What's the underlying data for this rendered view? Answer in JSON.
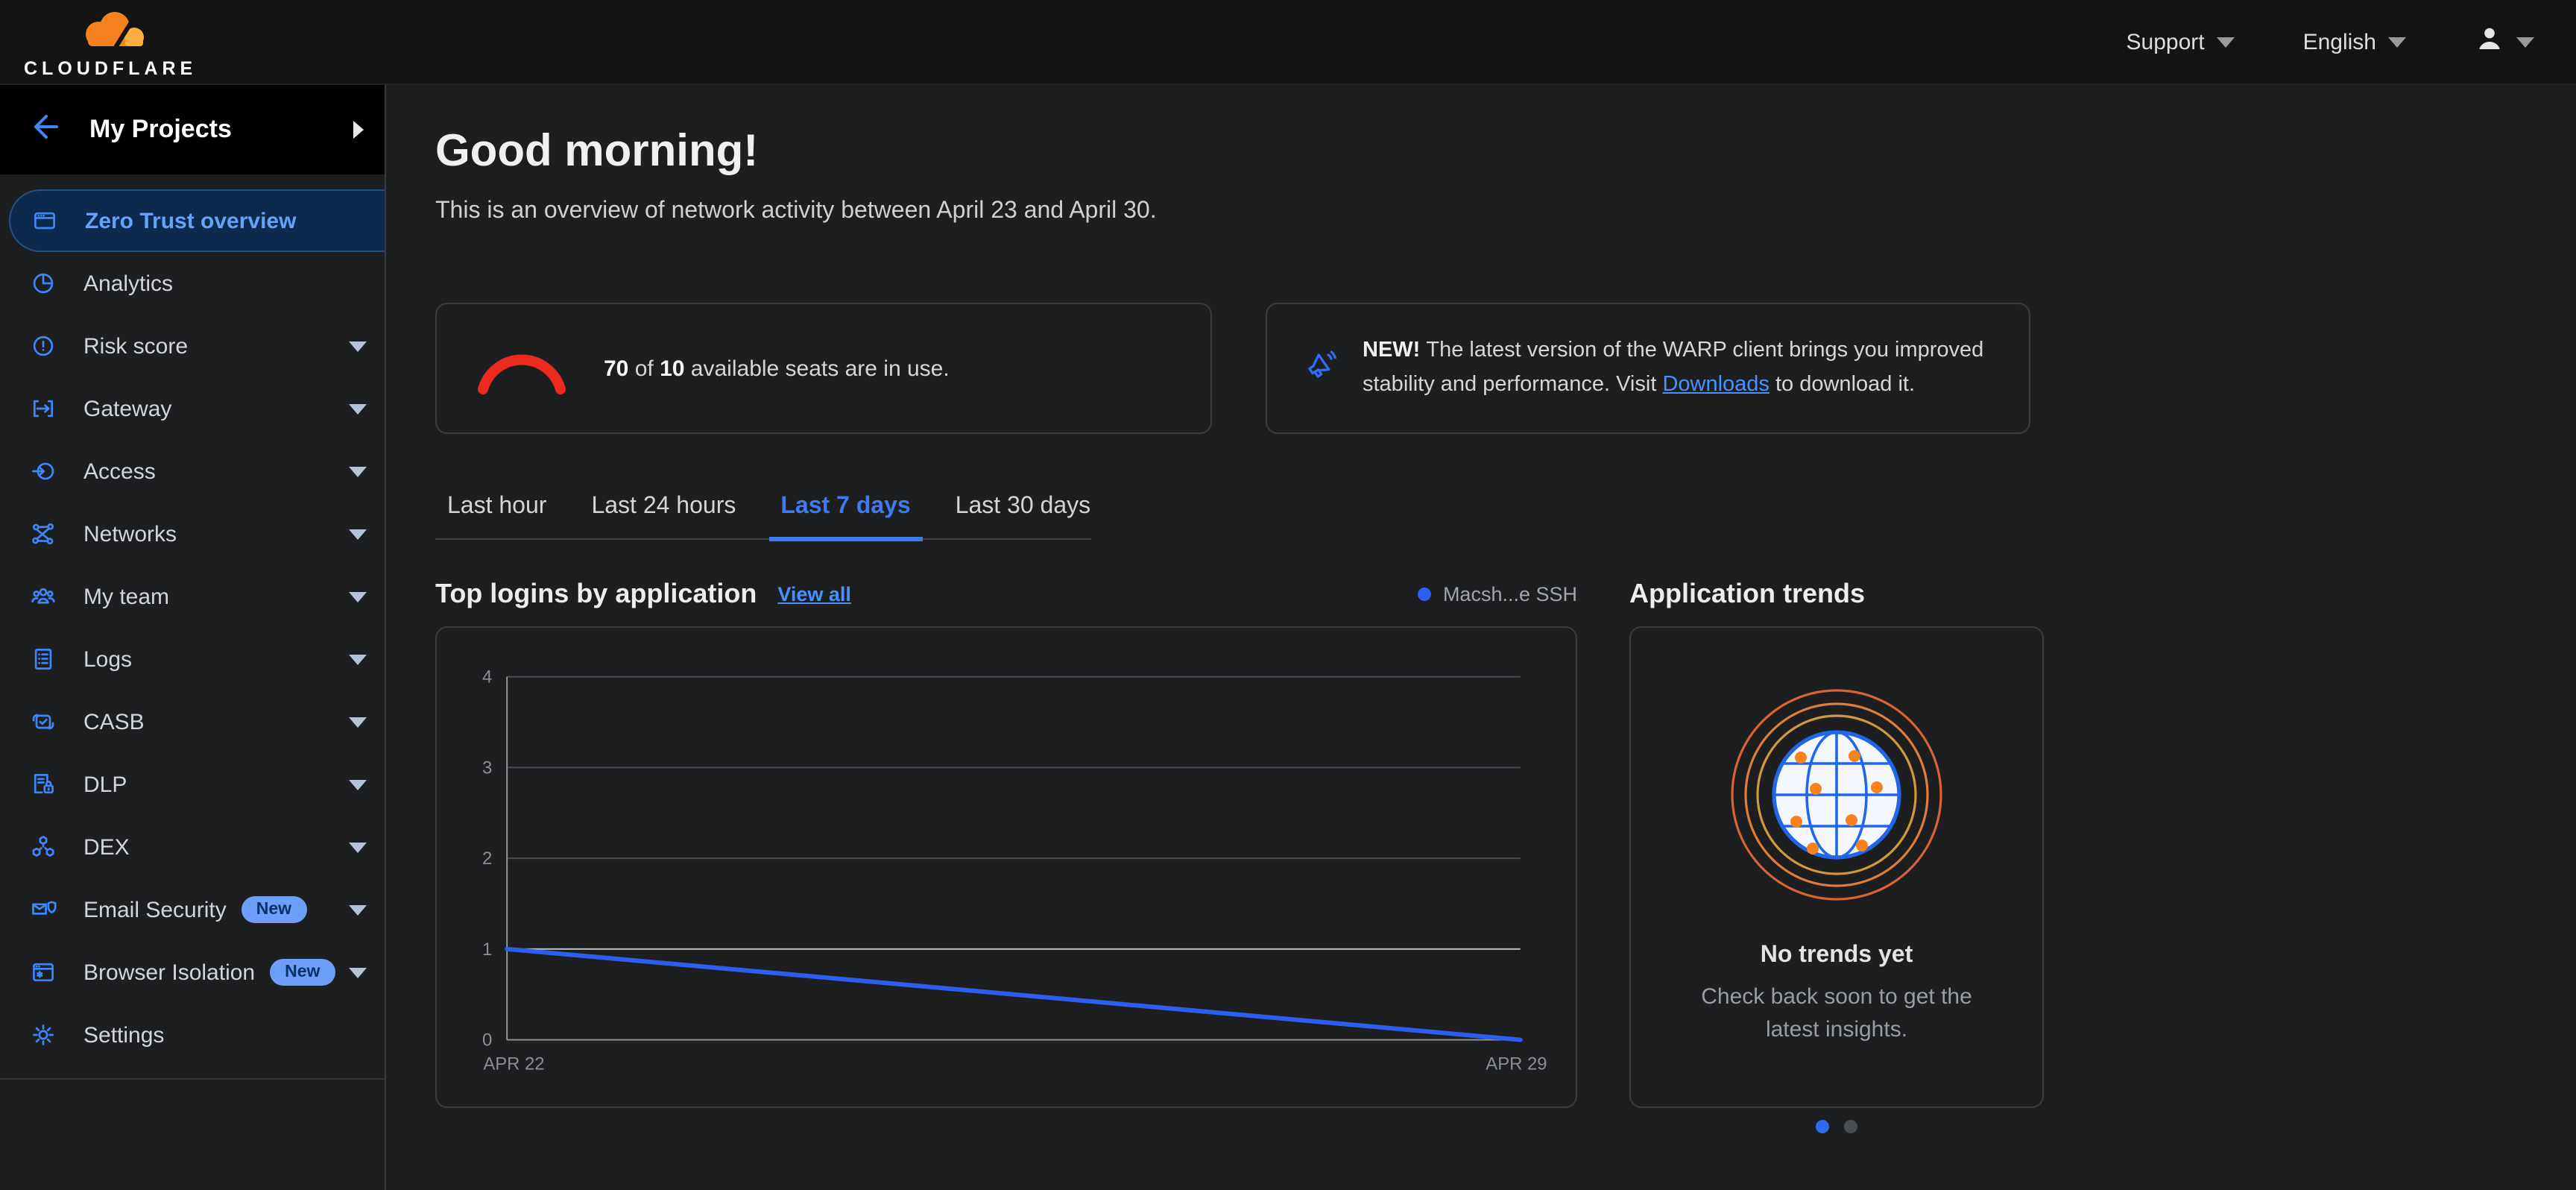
{
  "topbar": {
    "brand": "CLOUDFLARE",
    "support_label": "Support",
    "language_label": "English"
  },
  "sidebar": {
    "projects_label": "My Projects",
    "items": [
      {
        "label": "Zero Trust overview"
      },
      {
        "label": "Analytics"
      },
      {
        "label": "Risk score"
      },
      {
        "label": "Gateway"
      },
      {
        "label": "Access"
      },
      {
        "label": "Networks"
      },
      {
        "label": "My team"
      },
      {
        "label": "Logs"
      },
      {
        "label": "CASB"
      },
      {
        "label": "DLP"
      },
      {
        "label": "DEX"
      },
      {
        "label": "Email Security",
        "badge": "New"
      },
      {
        "label": "Browser Isolation",
        "badge": "New"
      },
      {
        "label": "Settings"
      }
    ]
  },
  "main": {
    "greeting": "Good morning!",
    "subtitle": "This is an overview of network activity between April 23 and April 30.",
    "seats_card": {
      "used": "70",
      "middle": " of ",
      "total": "10",
      "suffix": " available seats are in use."
    },
    "warp_card": {
      "prefix": "NEW! ",
      "text_before_link": "The latest version of the WARP client brings you improved stability and performance. Visit ",
      "link_label": "Downloads",
      "text_after_link": " to download it."
    },
    "tabs": [
      {
        "label": "Last hour"
      },
      {
        "label": "Last 24 hours"
      },
      {
        "label": "Last 7 days"
      },
      {
        "label": "Last 30 days"
      }
    ],
    "active_tab": "Last 7 days",
    "top_logins": {
      "title": "Top logins by application",
      "view_all": "View all"
    },
    "app_trends": {
      "title": "Application trends",
      "empty_title": "No trends yet",
      "empty_body": "Check back soon to get the latest insights."
    }
  },
  "chart_data": {
    "type": "line",
    "title": "Top logins by application",
    "x": [
      "APR 22",
      "APR 29"
    ],
    "series": [
      {
        "name": "Macsh...e SSH",
        "values": [
          1,
          0
        ]
      }
    ],
    "yticks": [
      0,
      1,
      2,
      3,
      4
    ],
    "ylim": [
      0,
      4
    ],
    "grid": "horizontal",
    "legend_position": "top-right",
    "highlight_tick": 1,
    "colors": {
      "line": "#2b5ff2",
      "grid": "#4a4c4f",
      "axis": "#939598",
      "highlight_grid": "#c8cacc",
      "tick_text": "#8b8e92"
    }
  },
  "colors": {
    "accent_blue": "#3f86f7",
    "link_blue": "#4693ff",
    "gauge_red": "#ee2a1e",
    "brand_orange": "#f6821f",
    "active_nav_bg": "#0c2a4d"
  }
}
